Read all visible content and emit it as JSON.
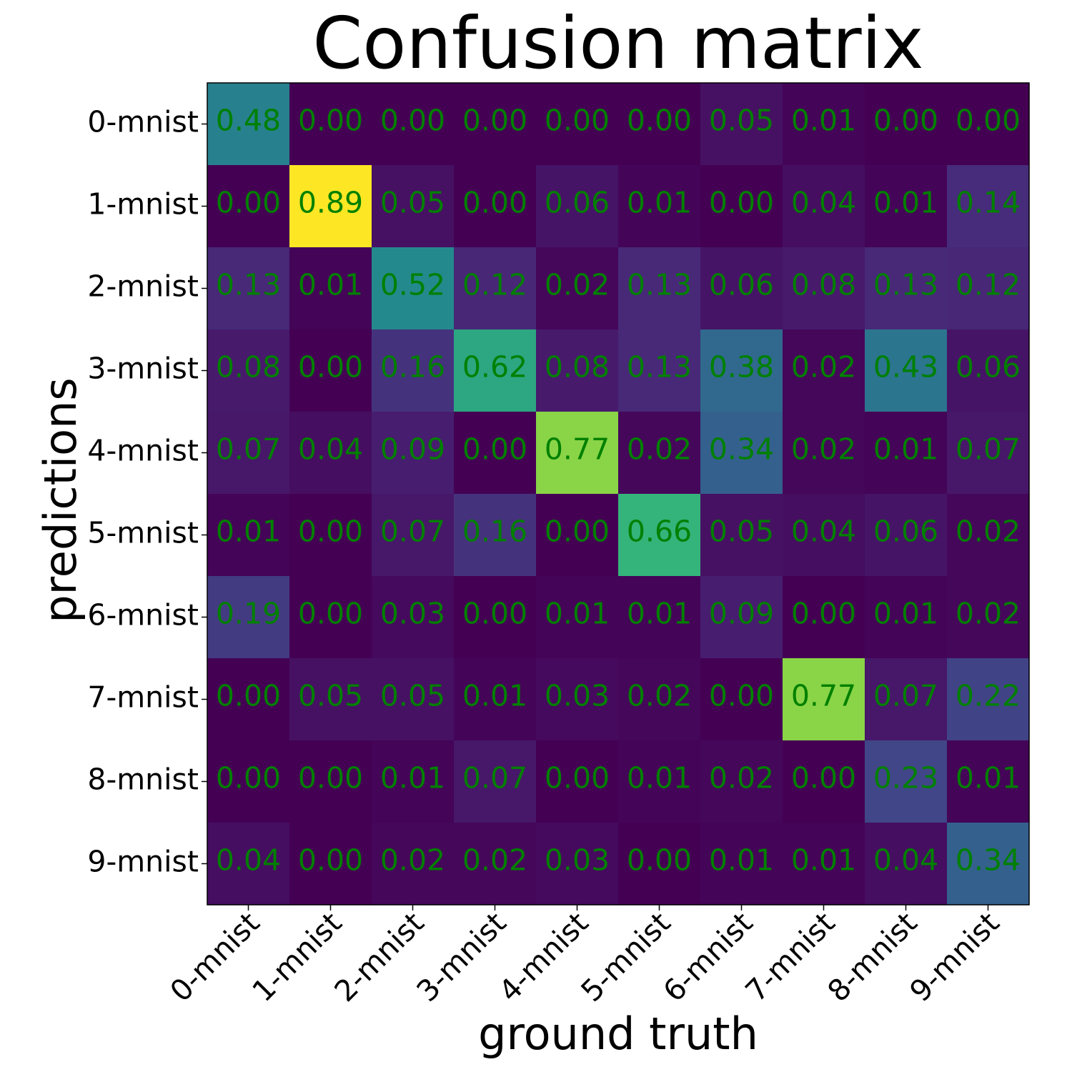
{
  "chart_data": {
    "type": "heatmap",
    "title": "Confusion matrix",
    "xlabel": "ground truth",
    "ylabel": "predictions",
    "x_categories": [
      "0-mnist",
      "1-mnist",
      "2-mnist",
      "3-mnist",
      "4-mnist",
      "5-mnist",
      "6-mnist",
      "7-mnist",
      "8-mnist",
      "9-mnist"
    ],
    "y_categories": [
      "0-mnist",
      "1-mnist",
      "2-mnist",
      "3-mnist",
      "4-mnist",
      "5-mnist",
      "6-mnist",
      "7-mnist",
      "8-mnist",
      "9-mnist"
    ],
    "values": [
      [
        0.48,
        0.0,
        0.0,
        0.0,
        0.0,
        0.0,
        0.05,
        0.01,
        0.0,
        0.0
      ],
      [
        0.0,
        0.89,
        0.05,
        0.0,
        0.06,
        0.01,
        0.0,
        0.04,
        0.01,
        0.14
      ],
      [
        0.13,
        0.01,
        0.52,
        0.12,
        0.02,
        0.13,
        0.06,
        0.08,
        0.13,
        0.12
      ],
      [
        0.08,
        0.0,
        0.16,
        0.62,
        0.08,
        0.13,
        0.38,
        0.02,
        0.43,
        0.06
      ],
      [
        0.07,
        0.04,
        0.09,
        0.0,
        0.77,
        0.02,
        0.34,
        0.02,
        0.01,
        0.07
      ],
      [
        0.01,
        0.0,
        0.07,
        0.16,
        0.0,
        0.66,
        0.05,
        0.04,
        0.06,
        0.02
      ],
      [
        0.19,
        0.0,
        0.03,
        0.0,
        0.01,
        0.01,
        0.09,
        0.0,
        0.01,
        0.02
      ],
      [
        0.0,
        0.05,
        0.05,
        0.01,
        0.03,
        0.02,
        0.0,
        0.77,
        0.07,
        0.22
      ],
      [
        0.0,
        0.0,
        0.01,
        0.07,
        0.0,
        0.01,
        0.02,
        0.0,
        0.23,
        0.01
      ],
      [
        0.04,
        0.0,
        0.02,
        0.02,
        0.03,
        0.0,
        0.01,
        0.01,
        0.04,
        0.34
      ]
    ],
    "colormap": "viridis",
    "value_range": [
      0.0,
      0.89
    ],
    "annotation_color": "#008000",
    "grid": false,
    "legend": "none"
  }
}
